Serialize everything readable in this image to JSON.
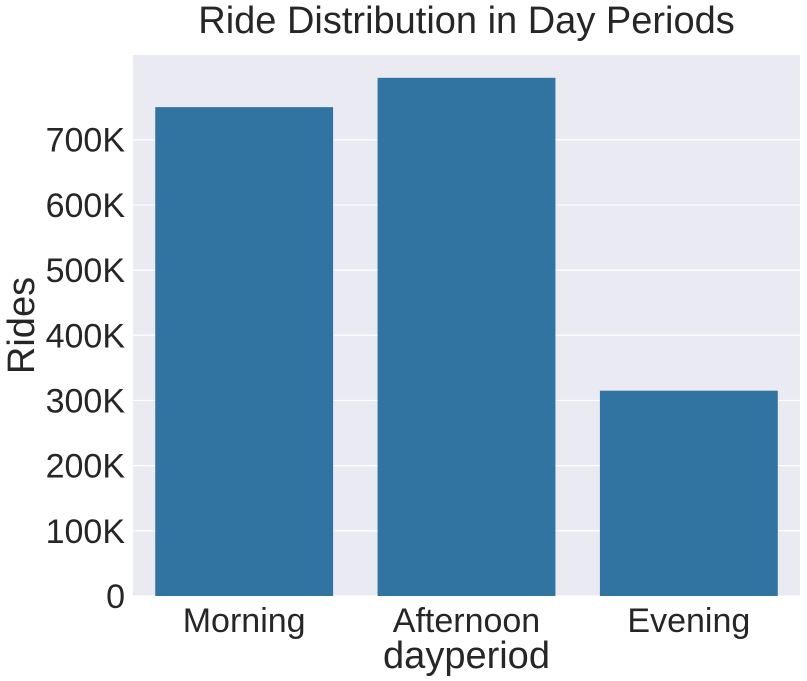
{
  "chart_data": {
    "type": "bar",
    "title": "Ride Distribution in Day Periods",
    "xlabel": "dayperiod",
    "ylabel": "Rides",
    "categories": [
      "Morning",
      "Afternoon",
      "Evening"
    ],
    "values": [
      750000,
      795000,
      315000
    ],
    "ylim": [
      0,
      830000
    ],
    "yticks": [
      0,
      100000,
      200000,
      300000,
      400000,
      500000,
      600000,
      700000
    ],
    "ytick_labels": [
      "0",
      "100K",
      "200K",
      "300K",
      "400K",
      "500K",
      "600K",
      "700K"
    ],
    "bar_color": "#3274a1",
    "background_color": "#eaeaf2",
    "grid": true
  }
}
